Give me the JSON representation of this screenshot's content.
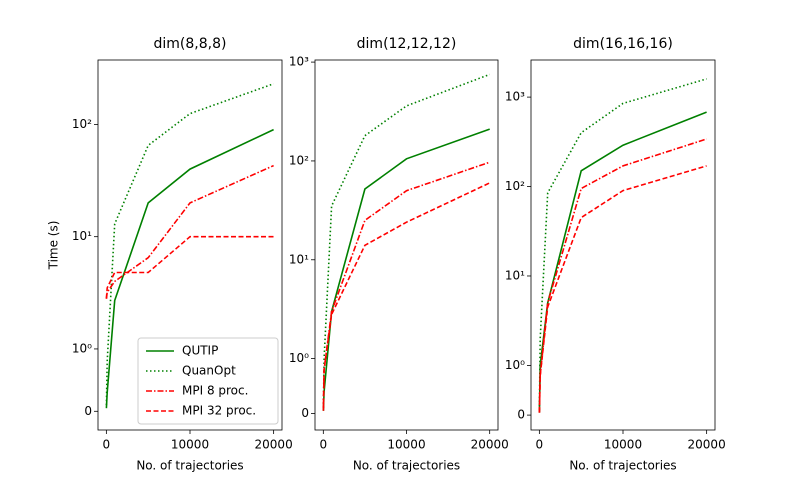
{
  "chart_data": [
    {
      "type": "line",
      "title": "dim(8,8,8)",
      "xlabel": "No. of trajectories",
      "ylabel": "Time (s)",
      "x": [
        10,
        100,
        1000,
        5000,
        10000,
        20000
      ],
      "series": [
        {
          "name": "QUTIP",
          "color": "#008000",
          "linestyle": "solid",
          "values": [
            0.05,
            0.3,
            2.7,
            20,
            40,
            90
          ]
        },
        {
          "name": "QuanOpt",
          "color": "#008000",
          "linestyle": "dotted",
          "values": [
            0.1,
            0.8,
            13,
            65,
            125,
            230
          ]
        },
        {
          "name": "MPI 8 proc.",
          "color": "#ff0000",
          "linestyle": "dashdot",
          "values": [
            2.8,
            3.2,
            4,
            6.5,
            20,
            43
          ]
        },
        {
          "name": "MPI 32 proc.",
          "color": "#ff0000",
          "linestyle": "dashed",
          "values": [
            2.8,
            3.5,
            4.8,
            4.8,
            10,
            10
          ]
        }
      ],
      "xlim": [
        -1000,
        21000
      ],
      "xticks": [
        0,
        10000,
        20000
      ],
      "yscale": "symlog",
      "linthresh": 1,
      "linscale": 0.5,
      "ylim": [
        -0.3,
        375
      ],
      "yticks": [
        0,
        {
          "value": 1,
          "label": "10⁰"
        },
        {
          "value": 10,
          "label": "10¹"
        },
        {
          "value": 100,
          "label": "10²"
        }
      ],
      "legend": "lower right"
    },
    {
      "type": "line",
      "title": "dim(12,12,12)",
      "xlabel": "No. of trajectories",
      "x": [
        10,
        100,
        1000,
        5000,
        10000,
        20000
      ],
      "series": [
        {
          "color": "#008000",
          "linestyle": "solid",
          "values": [
            0.05,
            0.4,
            3,
            52,
            105,
            210
          ]
        },
        {
          "color": "#008000",
          "linestyle": "dotted",
          "values": [
            0.1,
            1,
            35,
            180,
            360,
            750
          ]
        },
        {
          "color": "#ff0000",
          "linestyle": "dashdot",
          "values": [
            0.1,
            0.8,
            3,
            25,
            50,
            97
          ]
        },
        {
          "color": "#ff0000",
          "linestyle": "dashed",
          "values": [
            0.05,
            0.8,
            2.8,
            14,
            24,
            60
          ]
        }
      ],
      "xlim": [
        -1000,
        21000
      ],
      "xticks": [
        0,
        10000,
        20000
      ],
      "yscale": "symlog",
      "linthresh": 1,
      "linscale": 0.5,
      "ylim": [
        -0.3,
        1050
      ],
      "yticks": [
        0,
        {
          "value": 1,
          "label": "10⁰"
        },
        {
          "value": 10,
          "label": "10¹"
        },
        {
          "value": 100,
          "label": "10²"
        },
        {
          "value": 1000,
          "label": "10³"
        }
      ]
    },
    {
      "type": "line",
      "title": "dim(16,16,16)",
      "xlabel": "No. of trajectories",
      "x": [
        10,
        100,
        1000,
        5000,
        10000,
        20000
      ],
      "series": [
        {
          "color": "#008000",
          "linestyle": "solid",
          "values": [
            0.05,
            1,
            5,
            150,
            290,
            680
          ]
        },
        {
          "color": "#008000",
          "linestyle": "dotted",
          "values": [
            0.1,
            2,
            85,
            400,
            850,
            1600
          ]
        },
        {
          "color": "#ff0000",
          "linestyle": "dashdot",
          "values": [
            0.05,
            0.8,
            5,
            95,
            170,
            340
          ]
        },
        {
          "color": "#ff0000",
          "linestyle": "dashed",
          "values": [
            0.05,
            0.8,
            4.5,
            45,
            90,
            170
          ]
        }
      ],
      "xlim": [
        -1000,
        21000
      ],
      "xticks": [
        0,
        10000,
        20000
      ],
      "yscale": "symlog",
      "linthresh": 1,
      "linscale": 0.5,
      "ylim": [
        -0.3,
        2600
      ],
      "yticks": [
        0,
        {
          "value": 1,
          "label": "10⁰"
        },
        {
          "value": 10,
          "label": "10¹"
        },
        {
          "value": 100,
          "label": "10²"
        },
        {
          "value": 1000,
          "label": "10³"
        }
      ]
    }
  ]
}
